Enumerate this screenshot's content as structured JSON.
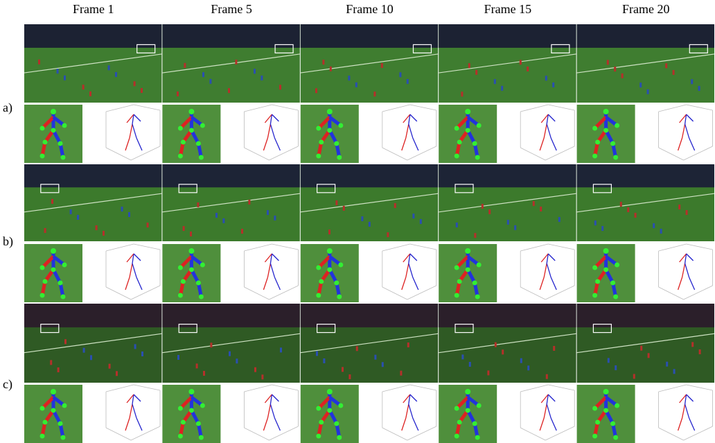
{
  "columns": [
    "Frame 1",
    "Frame 5",
    "Frame 10",
    "Frame 15",
    "Frame 20"
  ],
  "rows": [
    "a)",
    "b)",
    "c)"
  ]
}
